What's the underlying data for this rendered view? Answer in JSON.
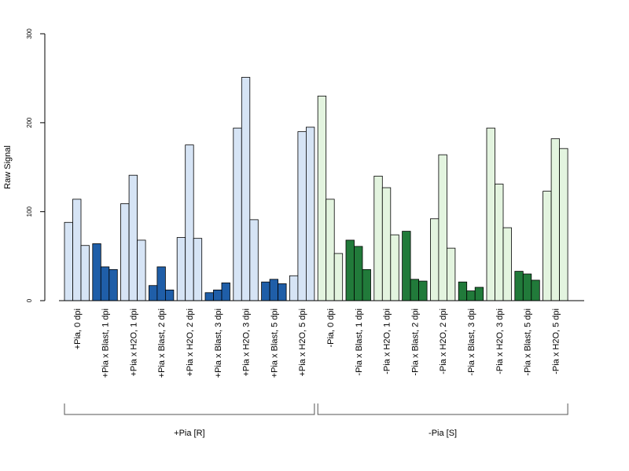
{
  "chart_data": {
    "type": "bar",
    "title": "",
    "xlabel": "",
    "ylabel": "Raw Signal",
    "ylim": [
      0,
      300
    ],
    "yticks": [
      0,
      100,
      200,
      300
    ],
    "grid": false,
    "legend": "none",
    "categories": [
      "+Pia, 0 dpi",
      "+Pia x Blast, 1 dpi",
      "+Pia x H2O, 1 dpi",
      "+Pia x Blast, 2 dpi",
      "+Pia x H2O, 2 dpi",
      "+Pia x Blast, 3 dpi",
      "+Pia x H2O, 3 dpi",
      "+Pia x Blast, 5 dpi",
      "+Pia x H2O, 5 dpi",
      "-Pia, 0 dpi",
      "-Pia x Blast, 1 dpi",
      "-Pia x H2O, 1 dpi",
      "-Pia x Blast, 2 dpi",
      "-Pia x H2O, 2 dpi",
      "-Pia x Blast, 3 dpi",
      "-Pia x H2O, 3 dpi",
      "-Pia x Blast, 5 dpi",
      "-Pia x H2O, 5 dpi"
    ],
    "replicates": [
      [
        88,
        114,
        62
      ],
      [
        64,
        38,
        35
      ],
      [
        109,
        141,
        68
      ],
      [
        17,
        38,
        12
      ],
      [
        71,
        175,
        70
      ],
      [
        9,
        12,
        20
      ],
      [
        194,
        251,
        91
      ],
      [
        21,
        24,
        19
      ],
      [
        28,
        190,
        195
      ],
      [
        230,
        114,
        53
      ],
      [
        68,
        61,
        35
      ],
      [
        140,
        127,
        74
      ],
      [
        78,
        24,
        22
      ],
      [
        92,
        164,
        59
      ],
      [
        21,
        11,
        15
      ],
      [
        194,
        131,
        82
      ],
      [
        33,
        30,
        23
      ],
      [
        123,
        182,
        171
      ]
    ],
    "bar_colors": [
      "#d6e4f5",
      "#1f5ea8",
      "#d6e4f5",
      "#1f5ea8",
      "#d6e4f5",
      "#1f5ea8",
      "#d6e4f5",
      "#1f5ea8",
      "#d6e4f5",
      "#e3f4df",
      "#217a3a",
      "#e3f4df",
      "#217a3a",
      "#e3f4df",
      "#217a3a",
      "#e3f4df",
      "#217a3a",
      "#e3f4df"
    ],
    "groups": [
      {
        "label": "+Pia [R]",
        "first": 0,
        "last": 8
      },
      {
        "label": "-Pia [S]",
        "first": 9,
        "last": 17
      }
    ]
  }
}
